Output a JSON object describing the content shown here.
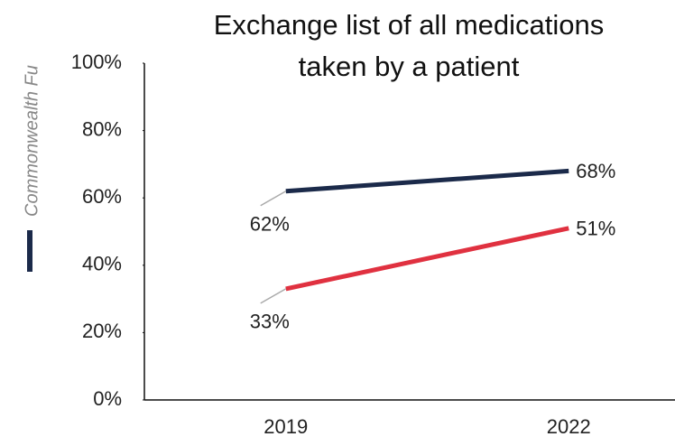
{
  "chart_data": {
    "type": "line",
    "title": [
      "Exchange list of all medications",
      "taken by a patient"
    ],
    "note": "Commonwealth Fu",
    "categories": [
      "2019",
      "2022"
    ],
    "series": [
      {
        "color": "#1b2a4a",
        "values": [
          62,
          68
        ],
        "value_labels": [
          "62%",
          "68%"
        ]
      },
      {
        "color": "#e03140",
        "values": [
          33,
          51
        ],
        "value_labels": [
          "33%",
          "51%"
        ]
      }
    ],
    "ylim": [
      0,
      100
    ],
    "yticks": [
      {
        "value": 0,
        "label": "0%"
      },
      {
        "value": 20,
        "label": "20%"
      },
      {
        "value": 40,
        "label": "40%"
      },
      {
        "value": 60,
        "label": "60%"
      },
      {
        "value": 80,
        "label": "80%"
      },
      {
        "value": 100,
        "label": "100%"
      }
    ]
  }
}
